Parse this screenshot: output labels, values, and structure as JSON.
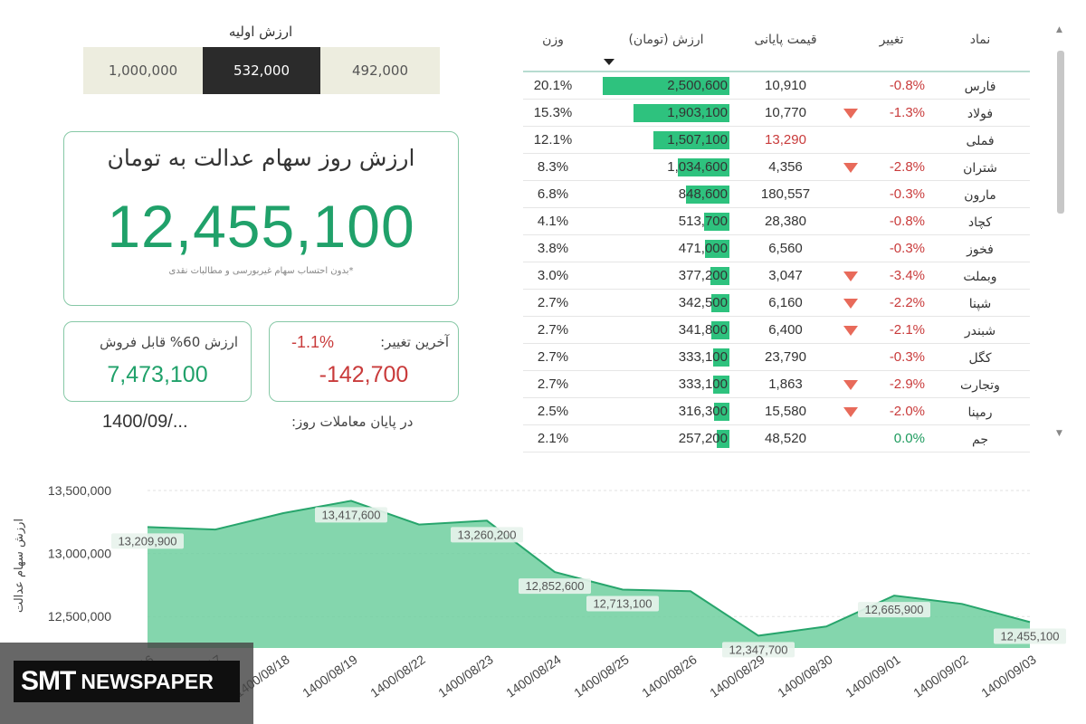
{
  "initial": {
    "title": "ارزش اولیه",
    "options": [
      "1,000,000",
      "532,000",
      "492,000"
    ],
    "selected": "532,000"
  },
  "main": {
    "title": "ارزش روز سهام عدالت به تومان",
    "value": "12,455,100",
    "note": "*بدون احتساب سهام غیربورسی و مطالبات نقدی"
  },
  "sellable": {
    "label": "ارزش 60% قابل فروش",
    "value": "7,473,100"
  },
  "last_change": {
    "label": "آخرین تغییر:",
    "percent": "-1.1%",
    "value": "-142,700"
  },
  "as_of": {
    "label": "در پایان معاملات روز:",
    "date": "1400/09/..."
  },
  "table": {
    "headers": {
      "symbol": "نماد",
      "change": "تغییر",
      "close": "قیمت پایانی",
      "value": "ارزش (تومان)",
      "weight": "وزن"
    },
    "rows": [
      {
        "symbol": "فارس",
        "change": "-0.8%",
        "down_arrow": false,
        "close": "10,910",
        "close_red": false,
        "value": "2,500,600",
        "weight": "20.1%",
        "bar_pct": 1.0
      },
      {
        "symbol": "فولاد",
        "change": "-1.3%",
        "down_arrow": true,
        "close": "10,770",
        "close_red": false,
        "value": "1,903,100",
        "weight": "15.3%",
        "bar_pct": 0.76
      },
      {
        "symbol": "فملی",
        "change": "",
        "down_arrow": false,
        "close": "13,290",
        "close_red": true,
        "value": "1,507,100",
        "weight": "12.1%",
        "bar_pct": 0.6
      },
      {
        "symbol": "شتران",
        "change": "-2.8%",
        "down_arrow": true,
        "close": "4,356",
        "close_red": false,
        "value": "1,034,600",
        "weight": "8.3%",
        "bar_pct": 0.41
      },
      {
        "symbol": "مارون",
        "change": "-0.3%",
        "down_arrow": false,
        "close": "180,557",
        "close_red": false,
        "value": "848,600",
        "weight": "6.8%",
        "bar_pct": 0.34
      },
      {
        "symbol": "کچاد",
        "change": "-0.8%",
        "down_arrow": false,
        "close": "28,380",
        "close_red": false,
        "value": "513,700",
        "weight": "4.1%",
        "bar_pct": 0.2
      },
      {
        "symbol": "فخوز",
        "change": "-0.3%",
        "down_arrow": false,
        "close": "6,560",
        "close_red": false,
        "value": "471,000",
        "weight": "3.8%",
        "bar_pct": 0.19
      },
      {
        "symbol": "وبملت",
        "change": "-3.4%",
        "down_arrow": true,
        "close": "3,047",
        "close_red": false,
        "value": "377,200",
        "weight": "3.0%",
        "bar_pct": 0.15
      },
      {
        "symbol": "شپنا",
        "change": "-2.2%",
        "down_arrow": true,
        "close": "6,160",
        "close_red": false,
        "value": "342,500",
        "weight": "2.7%",
        "bar_pct": 0.14
      },
      {
        "symbol": "شبندر",
        "change": "-2.1%",
        "down_arrow": true,
        "close": "6,400",
        "close_red": false,
        "value": "341,800",
        "weight": "2.7%",
        "bar_pct": 0.14
      },
      {
        "symbol": "کگل",
        "change": "-0.3%",
        "down_arrow": false,
        "close": "23,790",
        "close_red": false,
        "value": "333,100",
        "weight": "2.7%",
        "bar_pct": 0.13
      },
      {
        "symbol": "وتجارت",
        "change": "-2.9%",
        "down_arrow": true,
        "close": "1,863",
        "close_red": false,
        "value": "333,100",
        "weight": "2.7%",
        "bar_pct": 0.13
      },
      {
        "symbol": "رمپنا",
        "change": "-2.0%",
        "down_arrow": true,
        "close": "15,580",
        "close_red": false,
        "value": "316,300",
        "weight": "2.5%",
        "bar_pct": 0.12
      },
      {
        "symbol": "جم",
        "change": "0.0%",
        "down_arrow": false,
        "close": "48,520",
        "close_red": false,
        "value": "257,200",
        "weight": "2.1%",
        "bar_pct": 0.1
      }
    ]
  },
  "chart_data": {
    "type": "area",
    "ylabel": "ارزش سهام عدالت",
    "ylim": [
      12250000,
      13550000
    ],
    "yticks": [
      12500000,
      13000000,
      13500000
    ],
    "ytick_labels": [
      "12,500,000",
      "13,000,000",
      "13,500,000"
    ],
    "x": [
      "1400/08/16",
      "1400/08/17",
      "1400/08/18",
      "1400/08/19",
      "1400/08/22",
      "1400/08/23",
      "1400/08/24",
      "1400/08/25",
      "1400/08/26",
      "1400/08/29",
      "1400/08/30",
      "1400/09/01",
      "1400/09/02",
      "1400/09/03"
    ],
    "x_visible_labels": [
      "...8/18",
      "1400/08/19",
      "1400/08/22",
      "1400/08/23",
      "1400/08/24",
      "1400/08/25",
      "1400/08/26",
      "1400/08/29",
      "1400/08/30",
      "1400/09/01",
      "1400/09/02",
      "1400/09/03"
    ],
    "values": [
      13209900,
      13190000,
      13320000,
      13417600,
      13230000,
      13260200,
      12852600,
      12713100,
      12700000,
      12347700,
      12420000,
      12665900,
      12600000,
      12455100
    ],
    "data_labels": [
      "13,209,900",
      "",
      "",
      "13,417,600",
      "",
      "13,260,200",
      "12,852,600",
      "12,713,100",
      "",
      "12,347,700",
      "",
      "12,665,900",
      "",
      "12,455,100"
    ],
    "fill_color": "#6fcf9f",
    "line_color": "#27a56c",
    "grid": true
  },
  "logo": {
    "line1": "SMT",
    "line2": "NEWSPAPER"
  }
}
